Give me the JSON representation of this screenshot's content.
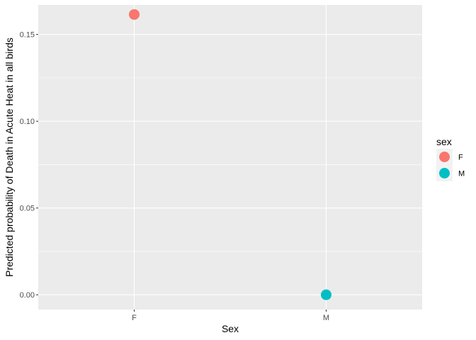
{
  "chart_data": {
    "type": "scatter",
    "xlabel": "Sex",
    "ylabel": "Predicted probability of Death in Acute Heat in all birds",
    "categories": [
      "F",
      "M"
    ],
    "ylim": [
      -0.0085,
      0.167
    ],
    "y_ticks": [
      0.0,
      0.05,
      0.1,
      0.15
    ],
    "y_tick_labels": [
      "0.00",
      "0.05",
      "0.10",
      "0.15"
    ],
    "grid": true,
    "legend": {
      "title": "sex",
      "position": "right",
      "entries": [
        "F",
        "M"
      ]
    },
    "series": [
      {
        "name": "F",
        "color": "#F8766D",
        "x": "F",
        "y": 0.1615
      },
      {
        "name": "M",
        "color": "#00BFC4",
        "x": "M",
        "y": 0.0
      }
    ]
  }
}
